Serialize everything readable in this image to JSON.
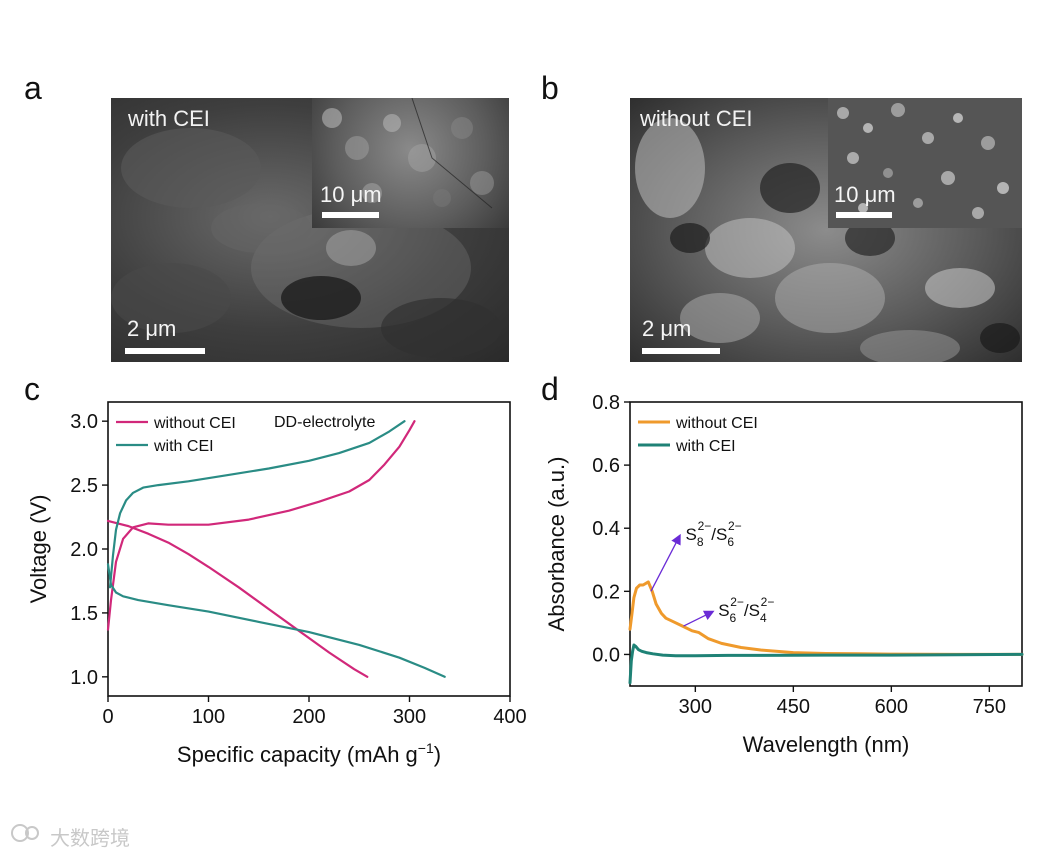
{
  "panels": {
    "a": {
      "letter": "a",
      "label": "with CEI",
      "scale_main": "2 μm",
      "scale_inset": "10 μm",
      "scale_main_fraction": 0.2,
      "scale_inset_fraction": 0.29
    },
    "b": {
      "letter": "b",
      "label": "without CEI",
      "scale_main": "2 μm",
      "scale_inset": "10 μm",
      "scale_main_fraction": 0.2,
      "scale_inset_fraction": 0.29
    },
    "c": {
      "letter": "c"
    },
    "d": {
      "letter": "d"
    }
  },
  "chart_data": [
    {
      "type": "line",
      "title": "",
      "xlabel": "Specific capacity (mAh g",
      "xlabel_sup": "−1",
      "xlabel_end": ")",
      "ylabel": "Voltage (V)",
      "xlim": [
        0,
        400
      ],
      "ylim": [
        0.85,
        3.15
      ],
      "xticks": [
        0,
        100,
        200,
        300,
        400
      ],
      "xtick_labels": [
        "0",
        "100",
        "200",
        "300",
        "400"
      ],
      "yticks": [
        1.0,
        1.5,
        2.0,
        2.5,
        3.0
      ],
      "ytick_labels": [
        "1.0",
        "1.5",
        "2.0",
        "2.5",
        "3.0"
      ],
      "annotation": "DD-electrolyte",
      "legend": [
        "without CEI",
        "with CEI"
      ],
      "legend_position": "top-left",
      "colors": {
        "without CEI": "#d1287a",
        "with CEI": "#2a8c85"
      },
      "series": [
        {
          "name": "without CEI",
          "segment": "charge",
          "x": [
            0,
            3,
            8,
            15,
            25,
            40,
            60,
            100,
            140,
            180,
            210,
            240,
            260,
            275,
            290,
            300,
            305
          ],
          "y": [
            1.37,
            1.6,
            1.9,
            2.08,
            2.17,
            2.2,
            2.19,
            2.19,
            2.23,
            2.3,
            2.37,
            2.45,
            2.54,
            2.66,
            2.8,
            2.93,
            3.0
          ]
        },
        {
          "name": "without CEI",
          "segment": "discharge",
          "x": [
            0,
            20,
            40,
            60,
            80,
            100,
            130,
            160,
            190,
            220,
            245,
            258
          ],
          "y": [
            2.22,
            2.18,
            2.12,
            2.05,
            1.96,
            1.86,
            1.7,
            1.53,
            1.36,
            1.19,
            1.06,
            1.0
          ]
        },
        {
          "name": "with CEI",
          "segment": "charge",
          "x": [
            2,
            5,
            8,
            12,
            18,
            25,
            35,
            50,
            80,
            120,
            160,
            200,
            230,
            260,
            280,
            295
          ],
          "y": [
            1.7,
            1.95,
            2.15,
            2.28,
            2.38,
            2.44,
            2.48,
            2.5,
            2.53,
            2.58,
            2.63,
            2.69,
            2.75,
            2.83,
            2.92,
            3.0
          ]
        },
        {
          "name": "with CEI",
          "segment": "discharge",
          "x": [
            0,
            3,
            8,
            15,
            30,
            60,
            100,
            150,
            200,
            250,
            290,
            315,
            335
          ],
          "y": [
            1.88,
            1.72,
            1.66,
            1.63,
            1.6,
            1.56,
            1.51,
            1.43,
            1.35,
            1.25,
            1.15,
            1.07,
            1.0
          ]
        }
      ]
    },
    {
      "type": "line",
      "title": "",
      "xlabel": "Wavelength (nm)",
      "ylabel": "Absorbance (a.u.)",
      "xlim": [
        200,
        800
      ],
      "ylim": [
        -0.1,
        0.8
      ],
      "xticks": [
        300,
        450,
        600,
        750
      ],
      "xtick_labels": [
        "300",
        "450",
        "600",
        "750"
      ],
      "yticks": [
        0.0,
        0.2,
        0.4,
        0.6,
        0.8
      ],
      "ytick_labels": [
        "0.0",
        "0.2",
        "0.4",
        "0.6",
        "0.8"
      ],
      "legend": [
        "without CEI",
        "with CEI"
      ],
      "legend_position": "top-left",
      "colors": {
        "without CEI": "#ef9a2c",
        "with CEI": "#1f8276",
        "arrow": "#6a2bd6"
      },
      "annotations": [
        {
          "base": "S",
          "sub1": "8",
          "sup1": "2−",
          "sep": "/S",
          "sub2": "6",
          "sup2": "2−",
          "point_x": 232,
          "point_y": 0.2,
          "text_x": 285,
          "text_y": 0.4
        },
        {
          "base": "S",
          "sub1": "6",
          "sup1": "2−",
          "sep": "/S",
          "sub2": "4",
          "sup2": "2−",
          "point_x": 282,
          "point_y": 0.09,
          "text_x": 335,
          "text_y": 0.16
        }
      ],
      "series": [
        {
          "name": "without CEI",
          "x": [
            200,
            203,
            206,
            210,
            215,
            220,
            228,
            234,
            240,
            248,
            255,
            265,
            280,
            295,
            305,
            320,
            340,
            370,
            400,
            450,
            500,
            550,
            600,
            700,
            800
          ],
          "y": [
            0.08,
            0.13,
            0.18,
            0.21,
            0.22,
            0.22,
            0.23,
            0.2,
            0.16,
            0.13,
            0.115,
            0.105,
            0.09,
            0.075,
            0.07,
            0.05,
            0.035,
            0.022,
            0.014,
            0.006,
            0.003,
            0.002,
            0.001,
            0.0,
            0.0
          ]
        },
        {
          "name": "with CEI",
          "x": [
            200,
            202,
            204,
            206,
            209,
            213,
            218,
            225,
            235,
            250,
            270,
            300,
            350,
            400,
            500,
            600,
            700,
            800
          ],
          "y": [
            -0.09,
            -0.02,
            0.01,
            0.03,
            0.025,
            0.015,
            0.01,
            0.006,
            0.002,
            -0.002,
            -0.004,
            -0.004,
            -0.003,
            -0.003,
            -0.002,
            -0.002,
            -0.001,
            0.0
          ]
        }
      ]
    }
  ],
  "watermark": "大数跨境",
  "watermark_icon": "company-logo-icon"
}
